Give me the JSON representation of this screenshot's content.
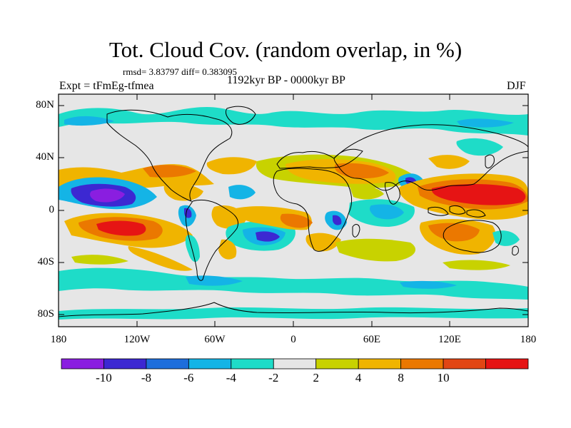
{
  "title": "Tot. Cloud Cov. (random overlap, in %)",
  "stats": "rmsd= 3.83797 diff= 0.383095",
  "experiment": "Expt = tFmEg-tfmea",
  "period": "1192kyr BP - 0000kyr BP",
  "season": "DJF",
  "y_axis": {
    "ticks": [
      "80N",
      "40N",
      "0",
      "40S",
      "80S"
    ]
  },
  "x_axis": {
    "ticks": [
      "180",
      "120W",
      "60W",
      "0",
      "60E",
      "120E",
      "180"
    ]
  },
  "colorbar": {
    "labels": [
      "-10",
      "-8",
      "-6",
      "-4",
      "-2",
      "2",
      "4",
      "8",
      "10"
    ],
    "colors": [
      "#8a1ee0",
      "#3c28d2",
      "#1e6edc",
      "#14b4e6",
      "#1edcc8",
      "#e6e6e6",
      "#c8d200",
      "#f0b400",
      "#eb7800",
      "#e14614",
      "#e61414"
    ]
  },
  "map": {
    "background_color": "#e6e6e6",
    "anomaly_regions": [
      {
        "region": "Central North Pacific (~150W, 15N)",
        "level": "-10"
      },
      {
        "region": "Subtropical South Pacific (~150W, 20S)",
        "level": "10"
      },
      {
        "region": "Tropical Western Pacific / Maritime Continent",
        "level": "10"
      },
      {
        "region": "Tropical South Atlantic (~20W, 15S)",
        "level": "-8"
      },
      {
        "region": "Equatorial Atlantic off West Africa",
        "level": "8"
      },
      {
        "region": "North Africa / Arabia (~50E, 30N)",
        "level": "8"
      },
      {
        "region": "Bay of Bengal (~90E, 20N)",
        "level": "-8"
      },
      {
        "region": "Southern Ocean band (~60S)",
        "level": "-4"
      },
      {
        "region": "Northern high latitudes (~70N)",
        "level": "-4"
      }
    ]
  }
}
